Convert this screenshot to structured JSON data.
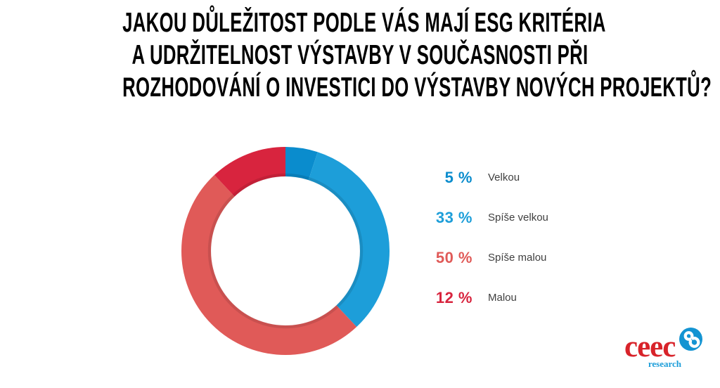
{
  "title": {
    "lines": [
      "JAKOU DŮLEŽITOST PODLE VÁS MAJÍ ESG KRITÉRIA",
      "A UDRŽITELNOST VÝSTAVBY V SOUČASNOSTI PŘI",
      "ROZHODOVÁNÍ O INVESTICI DO VÝSTAVBY NOVÝCH PROJEKTŮ?"
    ]
  },
  "chart_data": {
    "type": "pie",
    "subtype": "donut",
    "title": "Jakou důležitost podle vás mají ESG kritéria a udržitelnost výstavby v současnosti při rozhodování o investici do výstavby nových projektů?",
    "categories": [
      "Velkou",
      "Spíše velkou",
      "Spíše malou",
      "Malou"
    ],
    "values": [
      5,
      33,
      50,
      12
    ],
    "unit": "%",
    "colors": [
      "#0a8ccd",
      "#1d9ed9",
      "#e05a58",
      "#d8243e"
    ],
    "start_angle_deg": 0,
    "direction": "clockwise",
    "donut_hole_ratio": 0.72,
    "legend_position": "right",
    "legend_labels": [
      "5 %",
      "33 %",
      "50 %",
      "12 %"
    ]
  },
  "logo": {
    "brand": "ceec",
    "sub": "research",
    "brand_color": "#d8232a",
    "sub_color": "#1b9dd9",
    "mark_color": "#1494d2",
    "mark_icon": "interlocked-s-icon"
  }
}
